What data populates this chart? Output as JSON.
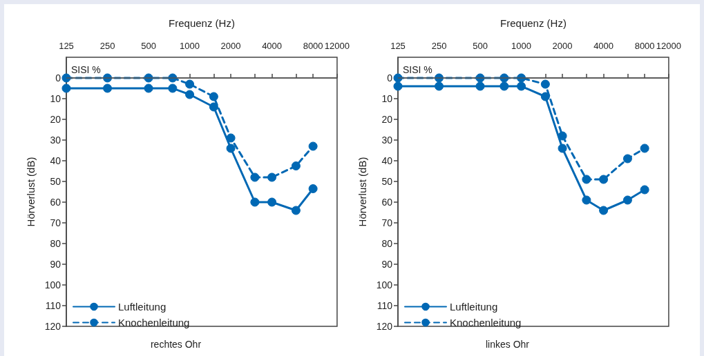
{
  "chart_data": [
    {
      "type": "line",
      "title": "rechtes Ohr",
      "xlabel": "Frequenz (Hz)",
      "ylabel": "Hörverlust (dB)",
      "annotations": [
        "SISI %"
      ],
      "log": "x",
      "x": [
        125,
        250,
        500,
        750,
        1000,
        1500,
        2000,
        3000,
        4000,
        6000,
        8000
      ],
      "series": [
        {
          "name": "Luftleitung",
          "color": "#0068b4",
          "line_style": "solid",
          "values": [
            5,
            5,
            5,
            5,
            8,
            14,
            34,
            60,
            60,
            64,
            53.5
          ]
        },
        {
          "name": "Knochenleitung",
          "color": "#0068b4",
          "line_style": "dashed",
          "values": [
            0,
            0,
            0,
            0,
            3,
            9,
            29,
            48,
            48,
            42.5,
            33
          ]
        }
      ],
      "xlim": [
        125,
        12000
      ],
      "xticks": [
        125,
        250,
        500,
        {
          "value": 750,
          "label": null
        },
        1000,
        {
          "value": 1500,
          "label": null
        },
        2000,
        {
          "value": 3000,
          "label": null
        },
        4000,
        {
          "value": 6000,
          "label": null
        },
        8000,
        12000
      ],
      "ylim": [
        120,
        -10
      ],
      "yticks": [
        0,
        10,
        20,
        30,
        40,
        50,
        60,
        70,
        80,
        90,
        100,
        110,
        120
      ],
      "ref_lines": [
        {
          "axis": "y",
          "value": 0,
          "color": "#555555"
        }
      ],
      "grid": false,
      "legend": "bottom left",
      "marker": "circle"
    },
    {
      "type": "line",
      "title": "linkes Ohr",
      "xlabel": "Frequenz (Hz)",
      "ylabel": "Hörverlust (dB)",
      "annotations": [
        "SISI %"
      ],
      "log": "x",
      "x": [
        125,
        250,
        500,
        750,
        1000,
        1500,
        2000,
        3000,
        4000,
        6000,
        8000
      ],
      "series": [
        {
          "name": "Luftleitung",
          "color": "#0068b4",
          "line_style": "solid",
          "values": [
            4,
            4,
            4,
            4,
            4,
            9,
            34,
            59,
            64,
            59,
            54
          ]
        },
        {
          "name": "Knochenleitung",
          "color": "#0068b4",
          "line_style": "dashed",
          "values": [
            0,
            0,
            0,
            0,
            0,
            3,
            28,
            49,
            49,
            39,
            34
          ]
        }
      ],
      "xlim": [
        125,
        12000
      ],
      "xticks": [
        125,
        250,
        500,
        {
          "value": 750,
          "label": null
        },
        1000,
        {
          "value": 1500,
          "label": null
        },
        2000,
        {
          "value": 3000,
          "label": null
        },
        4000,
        {
          "value": 6000,
          "label": null
        },
        8000,
        12000
      ],
      "ylim": [
        120,
        -10
      ],
      "yticks": [
        0,
        10,
        20,
        30,
        40,
        50,
        60,
        70,
        80,
        90,
        100,
        110,
        120
      ],
      "ref_lines": [
        {
          "axis": "y",
          "value": 0,
          "color": "#555555"
        }
      ],
      "grid": false,
      "legend": "bottom left",
      "marker": "circle"
    }
  ]
}
